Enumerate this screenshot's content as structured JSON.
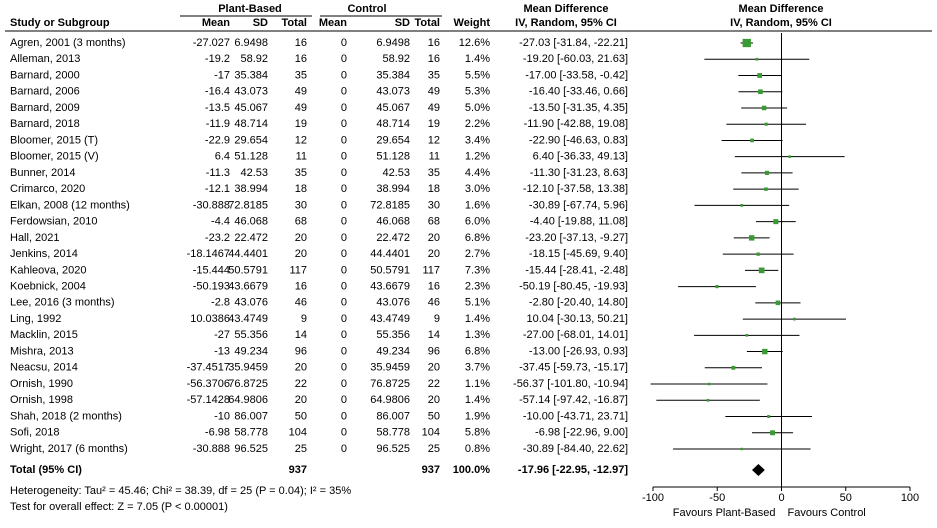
{
  "chart_data": {
    "type": "forest",
    "headers": {
      "study": "Study or Subgroup",
      "group1": "Plant-Based",
      "group2": "Control",
      "mean": "Mean",
      "sd": "SD",
      "total": "Total",
      "weight": "Weight",
      "md": "Mean Difference",
      "method": "IV, Random, 95% CI"
    },
    "studies": [
      "Agren, 2001 (3 months)",
      "Alleman, 2013",
      "Barnard, 2000",
      "Barnard, 2006",
      "Barnard, 2009",
      "Barnard, 2018",
      "Bloomer, 2015 (T)",
      "Bloomer, 2015 (V)",
      "Bunner, 2014",
      "Crimarco, 2020",
      "Elkan, 2008 (12 months)",
      "Ferdowsian, 2010",
      "Hall, 2021",
      "Jenkins, 2014",
      "Kahleova, 2020",
      "Koebnick, 2004",
      "Lee, 2016 (3 months)",
      "Ling, 1992",
      "Macklin, 2015",
      "Mishra, 2013",
      "Neacsu, 2014",
      "Ornish, 1990",
      "Ornish, 1998",
      "Shah, 2018 (2 months)",
      "Sofi, 2018",
      "Wright, 2017 (6 months)"
    ],
    "plant_mean": [
      -27.027,
      -19.2,
      -17,
      -16.4,
      -13.5,
      -11.9,
      -22.9,
      6.4,
      -11.3,
      -12.1,
      -30.888,
      -4.4,
      -23.2,
      -18.1467,
      -15.444,
      -50.193,
      -2.8,
      10.0386,
      -27,
      -13,
      -37.4517,
      -56.3706,
      -57.1428,
      -10,
      -6.98,
      -30.888
    ],
    "plant_sd": [
      6.9498,
      58.92,
      35.384,
      43.073,
      45.067,
      48.714,
      29.654,
      51.128,
      42.53,
      38.994,
      72.8185,
      46.068,
      22.472,
      44.4401,
      50.5791,
      43.6679,
      43.076,
      43.4749,
      55.356,
      49.234,
      35.9459,
      76.8725,
      64.9806,
      86.007,
      58.778,
      96.525
    ],
    "plant_total": [
      16,
      16,
      35,
      49,
      49,
      19,
      12,
      11,
      35,
      18,
      30,
      68,
      20,
      20,
      117,
      16,
      46,
      9,
      14,
      96,
      20,
      22,
      20,
      50,
      104,
      25
    ],
    "control_mean": [
      0,
      0,
      0,
      0,
      0,
      0,
      0,
      0,
      0,
      0,
      0,
      0,
      0,
      0,
      0,
      0,
      0,
      0,
      0,
      0,
      0,
      0,
      0,
      0,
      0,
      0
    ],
    "control_sd": [
      6.9498,
      58.92,
      35.384,
      43.073,
      45.067,
      48.714,
      29.654,
      51.128,
      42.53,
      38.994,
      72.8185,
      46.068,
      22.472,
      44.4401,
      50.5791,
      43.6679,
      43.076,
      43.4749,
      55.356,
      49.234,
      35.9459,
      76.8725,
      64.9806,
      86.007,
      58.778,
      96.525
    ],
    "control_total": [
      16,
      16,
      35,
      49,
      49,
      19,
      12,
      11,
      35,
      18,
      30,
      68,
      20,
      20,
      117,
      16,
      46,
      9,
      14,
      96,
      20,
      22,
      20,
      50,
      104,
      25
    ],
    "weights": [
      12.6,
      1.4,
      5.5,
      5.3,
      5.0,
      2.2,
      3.4,
      1.2,
      4.4,
      3.0,
      1.6,
      6.0,
      6.8,
      2.7,
      7.3,
      2.3,
      5.1,
      1.4,
      1.3,
      6.8,
      3.7,
      1.1,
      1.4,
      1.9,
      5.8,
      0.8
    ],
    "weight_labels": [
      "12.6%",
      "1.4%",
      "5.5%",
      "5.3%",
      "5.0%",
      "2.2%",
      "3.4%",
      "1.2%",
      "4.4%",
      "3.0%",
      "1.6%",
      "6.0%",
      "6.8%",
      "2.7%",
      "7.3%",
      "2.3%",
      "5.1%",
      "1.4%",
      "1.3%",
      "6.8%",
      "3.7%",
      "1.1%",
      "1.4%",
      "1.9%",
      "5.8%",
      "0.8%"
    ],
    "values": [
      -27.03,
      -19.2,
      -17,
      -16.4,
      -13.5,
      -11.9,
      -22.9,
      6.4,
      -11.3,
      -12.1,
      -30.89,
      -4.4,
      -23.2,
      -18.15,
      -15.44,
      -50.19,
      -2.8,
      10.04,
      -27,
      -13,
      -37.45,
      -56.37,
      -57.14,
      -10,
      -6.98,
      -30.89
    ],
    "lower": [
      -31.84,
      -60.03,
      -33.58,
      -33.46,
      -31.35,
      -42.88,
      -46.63,
      -36.33,
      -31.23,
      -37.58,
      -67.74,
      -19.88,
      -37.13,
      -45.69,
      -28.41,
      -80.45,
      -20.4,
      -30.13,
      -68.01,
      -26.93,
      -59.73,
      -101.8,
      -97.42,
      -43.71,
      -22.96,
      -84.4
    ],
    "upper": [
      -22.21,
      21.63,
      -0.42,
      0.66,
      4.35,
      19.08,
      0.83,
      49.13,
      8.63,
      13.38,
      5.96,
      11.08,
      -9.27,
      9.4,
      -2.48,
      -19.93,
      14.8,
      50.21,
      14.01,
      0.93,
      -15.17,
      -10.94,
      -16.87,
      23.71,
      9,
      22.62
    ],
    "value_labels": [
      "-27.03 [-31.84, -22.21]",
      "-19.20 [-60.03, 21.63]",
      "-17.00 [-33.58, -0.42]",
      "-16.40 [-33.46, 0.66]",
      "-13.50 [-31.35, 4.35]",
      "-11.90 [-42.88, 19.08]",
      "-22.90 [-46.63, 0.83]",
      "6.40 [-36.33, 49.13]",
      "-11.30 [-31.23, 8.63]",
      "-12.10 [-37.58, 13.38]",
      "-30.89 [-67.74, 5.96]",
      "-4.40 [-19.88, 11.08]",
      "-23.20 [-37.13, -9.27]",
      "-18.15 [-45.69, 9.40]",
      "-15.44 [-28.41, -2.48]",
      "-50.19 [-80.45, -19.93]",
      "-2.80 [-20.40, 14.80]",
      "10.04 [-30.13, 50.21]",
      "-27.00 [-68.01, 14.01]",
      "-13.00 [-26.93, 0.93]",
      "-37.45 [-59.73, -15.17]",
      "-56.37 [-101.80, -10.94]",
      "-57.14 [-97.42, -16.87]",
      "-10.00 [-43.71, 23.71]",
      "-6.98 [-22.96, 9.00]",
      "-30.89 [-84.40, 22.62]"
    ],
    "color": "#3a9b35",
    "total": {
      "label": "Total (95% CI)",
      "plant_total": 937,
      "control_total": 937,
      "weight": 100,
      "weight_label": "100.0%",
      "value": -17.96,
      "lower": -22.95,
      "upper": -12.97,
      "value_label": "-17.96 [-22.95, -12.97]"
    },
    "heterogeneity": "Heterogeneity: Tau² = 45.46; Chi² = 38.39, df = 25 (P = 0.04); I² = 35%",
    "overall_effect": "Test for overall effect: Z = 7.05 (P < 0.00001)",
    "xlim": [
      -100,
      100
    ],
    "xticks": [
      -100,
      -50,
      0,
      50,
      100
    ],
    "favours_left": "Favours Plant-Based",
    "favours_right": "Favours Control"
  }
}
